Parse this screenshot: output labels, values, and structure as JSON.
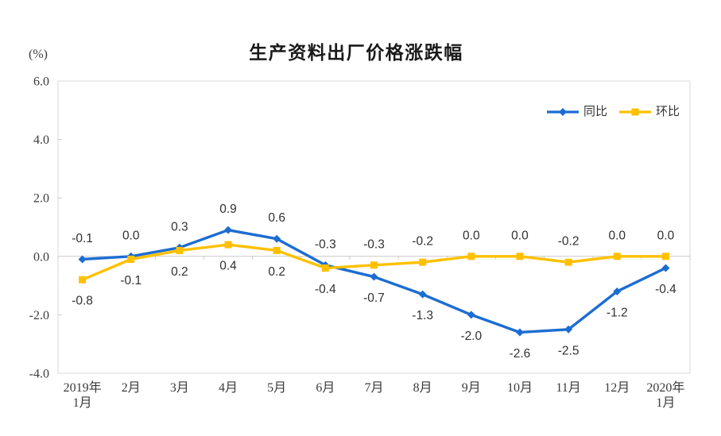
{
  "chart_data": {
    "type": "line",
    "title": "生产资料出厂价格涨跌幅",
    "ylabel": "(%)",
    "xlabel": "",
    "categories": [
      "2019年\n1月",
      "2月",
      "3月",
      "4月",
      "5月",
      "6月",
      "7月",
      "8月",
      "9月",
      "10月",
      "11月",
      "12月",
      "2020年\n1月"
    ],
    "series": [
      {
        "name": "同比",
        "key": "yoy",
        "marker": "diamond",
        "color": "#1c6dd2",
        "values": [
          -0.1,
          0.0,
          0.3,
          0.9,
          0.6,
          -0.3,
          -0.7,
          -1.3,
          -2.0,
          -2.6,
          -2.5,
          -1.2,
          -0.4
        ]
      },
      {
        "name": "环比",
        "key": "mom",
        "marker": "square",
        "color": "#ffc000",
        "values": [
          -0.8,
          -0.1,
          0.2,
          0.4,
          0.2,
          -0.4,
          -0.3,
          -0.2,
          0.0,
          0.0,
          -0.2,
          0.0,
          0.0
        ]
      }
    ],
    "ylim": [
      -4.0,
      6.0
    ],
    "ytick_step": 2.0,
    "yticks": [
      "6.0",
      "4.0",
      "2.0",
      "0.0",
      "-2.0",
      "-4.0"
    ],
    "grid": false,
    "legend_position": "top-right",
    "axis_color": "#c9c9c9",
    "border_color": "#d9d9d9",
    "text_color": "#3b3b3b"
  }
}
